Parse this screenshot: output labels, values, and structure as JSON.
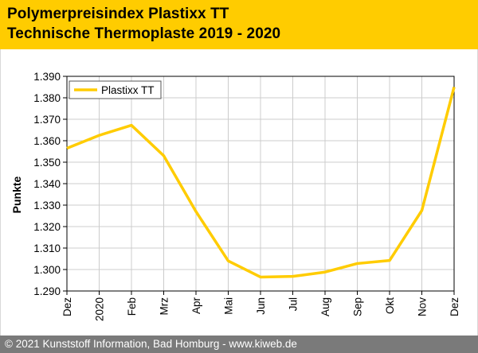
{
  "header": {
    "title": "Polymerpreisindex Plastixx TT",
    "subtitle": "Technische Thermoplaste 2019 - 2020",
    "background": "#ffcc00"
  },
  "footer": {
    "text": "© 2021 Kunststoff Information, Bad Homburg - www.kiweb.de",
    "background": "#7a7a7a"
  },
  "chart_data": {
    "type": "line",
    "title": "",
    "xlabel": "",
    "ylabel": "Punkte",
    "categories": [
      "Dez",
      "2020",
      "Feb",
      "Mrz",
      "Apr",
      "Mai",
      "Jun",
      "Jul",
      "Aug",
      "Sep",
      "Okt",
      "Nov",
      "Dez"
    ],
    "yticks": [
      "1.290",
      "1.300",
      "1.310",
      "1.320",
      "1.330",
      "1.340",
      "1.350",
      "1.360",
      "1.370",
      "1.380",
      "1.390"
    ],
    "ylim": [
      1290,
      1390
    ],
    "grid": true,
    "legend": "top-left",
    "series": [
      {
        "name": "Plastixx TT",
        "color": "#ffcc00",
        "values": [
          1356.5,
          1362.5,
          1367.2,
          1353.0,
          1327.0,
          1304.0,
          1296.5,
          1296.8,
          1298.8,
          1302.8,
          1304.2,
          1327.5,
          1385.0
        ]
      }
    ]
  }
}
